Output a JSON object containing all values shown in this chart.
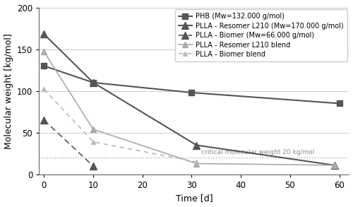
{
  "title": "",
  "xlabel": "Time [d]",
  "ylabel": "Molecular weight [kg/mol]",
  "ylim": [
    0,
    200
  ],
  "xlim": [
    -1,
    62
  ],
  "yticks": [
    0,
    50,
    100,
    150,
    200
  ],
  "xticks": [
    0,
    10,
    20,
    30,
    40,
    50,
    60
  ],
  "critical_mw": 20,
  "critical_label": "critical molecular weight 20 kg/mol",
  "series": [
    {
      "label": "PHB (Mw=132.000 g/mol)",
      "x": [
        0,
        10,
        30,
        60
      ],
      "y": [
        130,
        110,
        98,
        85
      ],
      "color": "#555555",
      "linestyle": "-",
      "marker": "s",
      "markersize": 6,
      "linewidth": 1.5,
      "dashes": null
    },
    {
      "label": "PLLA - Resomer L210 (Mw=170.000 g/mol)",
      "x": [
        0,
        10,
        31,
        59
      ],
      "y": [
        168,
        110,
        35,
        11
      ],
      "color": "#555555",
      "linestyle": "-",
      "marker": "^",
      "markersize": 7,
      "linewidth": 1.5,
      "dashes": null
    },
    {
      "label": "PLLA - Biomer (Mw=66.000 g/mol)",
      "x": [
        0,
        10
      ],
      "y": [
        65,
        10
      ],
      "color": "#555555",
      "linestyle": "--",
      "marker": "^",
      "markersize": 7,
      "linewidth": 1.2,
      "dashes": [
        5,
        3
      ]
    },
    {
      "label": "PLLA - Resomer L210 blend",
      "x": [
        0,
        10,
        31,
        59
      ],
      "y": [
        147,
        54,
        13,
        11
      ],
      "color": "#aaaaaa",
      "linestyle": "-",
      "marker": "^",
      "markersize": 6,
      "linewidth": 1.2,
      "dashes": null
    },
    {
      "label": "PLLA - Biomer blend",
      "x": [
        0,
        10,
        31
      ],
      "y": [
        102,
        39,
        15
      ],
      "color": "#bbbbbb",
      "linestyle": "--",
      "marker": "^",
      "markersize": 5,
      "linewidth": 1.2,
      "dashes": [
        4,
        3
      ]
    }
  ],
  "figsize": [
    5.0,
    2.93
  ],
  "dpi": 100,
  "background_color": "#ffffff",
  "grid_color": "#cccccc"
}
